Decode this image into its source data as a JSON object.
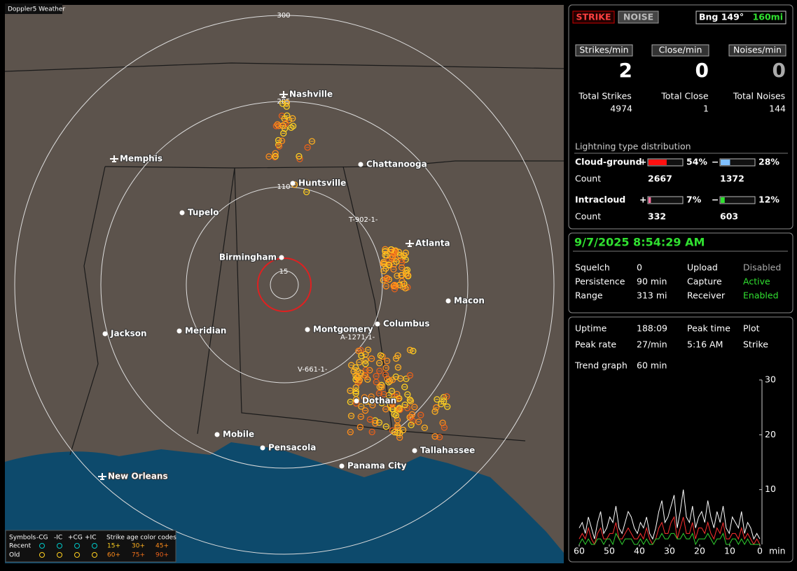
{
  "map": {
    "title": "Doppler5 Weather",
    "range_labels": [
      "300",
      "205",
      "110",
      "15"
    ],
    "cities": [
      "Nashville",
      "Memphis",
      "Chattanooga",
      "Huntsville",
      "Tupelo",
      "Atlanta",
      "Birmingham",
      "Macon",
      "Jackson",
      "Meridian",
      "Montgomery",
      "Columbus",
      "Dothan",
      "Mobile",
      "Pensacola",
      "Tallahassee",
      "Panama City",
      "New Orleans"
    ],
    "radials": [
      "T-902-1-",
      "A-1271-1-",
      "V-661-1-"
    ]
  },
  "legend": {
    "symbols": "Symbols",
    "types": [
      "-CG",
      "-IC",
      "+CG",
      "+IC"
    ],
    "age_title": "Strike age color codes",
    "recent": "Recent",
    "old": "Old",
    "recent_ages": [
      "15+",
      "30+",
      "45+"
    ],
    "old_ages": [
      "60+",
      "75+",
      "90+"
    ]
  },
  "counters": {
    "strike_button": "STRIKE",
    "noise_button": "NOISE",
    "bearing": "Bng 149°",
    "distance": "160mi",
    "rate_labels": [
      "Strikes/min",
      "Close/min",
      "Noises/min"
    ],
    "rates": [
      2,
      0,
      0
    ],
    "total_labels": [
      "Total Strikes",
      "Total Close",
      "Total Noises"
    ],
    "totals": [
      4974,
      1,
      144
    ]
  },
  "distribution": {
    "title": "Lightning type distribution",
    "count_label": "Count",
    "rows": [
      {
        "name": "Cloud-ground",
        "plus": {
          "sign": "+",
          "percent": 54,
          "percent_label": "54%",
          "count": 2667
        },
        "minus": {
          "sign": "−",
          "percent": 28,
          "percent_label": "28%",
          "count": 1372
        }
      },
      {
        "name": "Intracloud",
        "plus": {
          "sign": "+",
          "percent": 7,
          "percent_label": "7%",
          "count": 332
        },
        "minus": {
          "sign": "−",
          "percent": 12,
          "percent_label": "12%",
          "count": 603
        }
      }
    ]
  },
  "status": {
    "datetime": "9/7/2025 8:54:29 AM",
    "rows": [
      [
        "Squelch",
        "0",
        "Upload",
        "Disabled"
      ],
      [
        "Persistence",
        "90 min",
        "Capture",
        "Active"
      ],
      [
        "Range",
        "313 mi",
        "Receiver",
        "Enabled"
      ]
    ]
  },
  "stats": {
    "rows": [
      [
        "Uptime",
        "188:09",
        "Peak time",
        "Plot"
      ],
      [
        "Peak rate",
        "27/min",
        "5:16 AM",
        "Strike"
      ],
      [
        "Trend graph",
        "60 min"
      ]
    ]
  },
  "chart_data": {
    "type": "line",
    "ylim": [
      0,
      30
    ],
    "yticks": [
      10,
      20,
      30
    ],
    "xlim": [
      60,
      0
    ],
    "xticks": [
      60,
      50,
      40,
      30,
      20,
      10,
      0
    ],
    "x_unit": "min",
    "series": [
      {
        "color": "#ffffff",
        "values": [
          3,
          4,
          2,
          5,
          3,
          1,
          4,
          6,
          2,
          3,
          5,
          4,
          7,
          3,
          2,
          4,
          6,
          5,
          3,
          2,
          4,
          3,
          5,
          2,
          1,
          3,
          6,
          8,
          4,
          5,
          7,
          9,
          3,
          6,
          10,
          5,
          4,
          7,
          3,
          5,
          6,
          4,
          8,
          5,
          3,
          6,
          4,
          7,
          3,
          2,
          5,
          4,
          3,
          6,
          2,
          4,
          3,
          1,
          2,
          1
        ]
      },
      {
        "color": "#ff3030",
        "values": [
          1,
          2,
          1,
          3,
          1,
          0,
          2,
          3,
          1,
          1,
          2,
          2,
          4,
          1,
          1,
          2,
          3,
          2,
          1,
          1,
          2,
          1,
          3,
          1,
          0,
          1,
          3,
          4,
          2,
          2,
          4,
          5,
          1,
          3,
          5,
          2,
          2,
          4,
          1,
          3,
          3,
          2,
          4,
          2,
          1,
          3,
          2,
          4,
          1,
          1,
          2,
          2,
          1,
          3,
          1,
          2,
          1,
          0,
          1,
          0
        ]
      },
      {
        "color": "#30d030",
        "values": [
          0,
          1,
          0,
          1,
          0,
          0,
          1,
          1,
          0,
          1,
          1,
          0,
          2,
          1,
          0,
          1,
          1,
          1,
          0,
          0,
          1,
          0,
          1,
          0,
          0,
          1,
          1,
          2,
          1,
          1,
          2,
          2,
          1,
          1,
          2,
          1,
          1,
          2,
          0,
          1,
          1,
          1,
          2,
          1,
          0,
          1,
          1,
          2,
          0,
          0,
          1,
          1,
          0,
          1,
          0,
          1,
          0,
          0,
          0,
          0
        ]
      }
    ]
  }
}
